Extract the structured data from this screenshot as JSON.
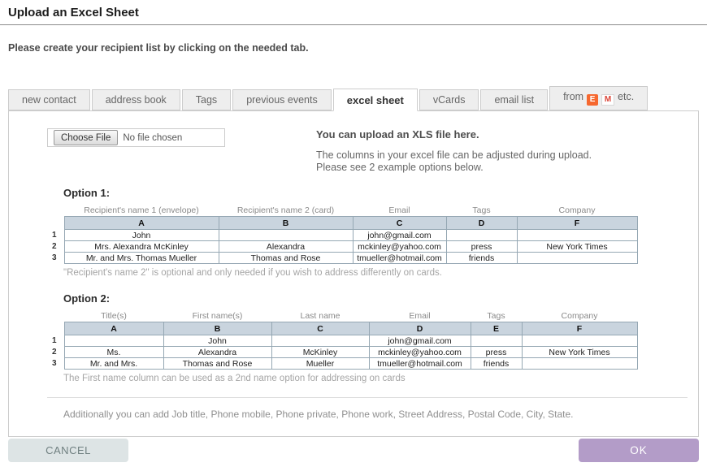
{
  "page": {
    "title": "Upload an Excel Sheet",
    "subtitle": "Please create your recipient list by clicking on the needed tab."
  },
  "tabs": {
    "items": [
      {
        "label": "new contact",
        "active": false
      },
      {
        "label": "address book",
        "active": false
      },
      {
        "label": "Tags",
        "active": false
      },
      {
        "label": "previous events",
        "active": false
      },
      {
        "label": "excel sheet",
        "active": true
      },
      {
        "label": "vCards",
        "active": false
      },
      {
        "label": "email list",
        "active": false
      },
      {
        "label": "from",
        "suffix": "etc.",
        "icon1": "E",
        "icon2": "M",
        "active": false
      }
    ]
  },
  "upload": {
    "choose_file_label": "Choose File",
    "no_file_text": "No file chosen",
    "heading": "You can upload an XLS file here.",
    "description_line1": "The columns in your excel file can be adjusted during upload.",
    "description_line2": "Please see 2 example options below."
  },
  "option1": {
    "title": "Option 1:",
    "field_labels": [
      "Recipient's name 1 (envelope)",
      "Recipient's name 2 (card)",
      "Email",
      "Tags",
      "Company"
    ],
    "columns": [
      "A",
      "B",
      "C",
      "D",
      "F"
    ],
    "row_numbers": [
      "1",
      "2",
      "3"
    ],
    "rows": [
      [
        "John",
        "",
        "john@gmail.com",
        "",
        ""
      ],
      [
        "Mrs. Alexandra McKinley",
        "Alexandra",
        "mckinley@yahoo.com",
        "press",
        "New York Times"
      ],
      [
        "Mr. and Mrs. Thomas Mueller",
        "Thomas and Rose",
        "tmueller@hotmail.com",
        "friends",
        ""
      ]
    ],
    "note": "\"Recipient's name 2\" is optional and only needed if you wish to address differently on cards."
  },
  "option2": {
    "title": "Option 2:",
    "field_labels": [
      "Title(s)",
      "First name(s)",
      "Last name",
      "Email",
      "Tags",
      "Company"
    ],
    "columns": [
      "A",
      "B",
      "C",
      "D",
      "E",
      "F"
    ],
    "row_numbers": [
      "1",
      "2",
      "3"
    ],
    "rows": [
      [
        "",
        "John",
        "",
        "john@gmail.com",
        "",
        ""
      ],
      [
        "Ms.",
        "Alexandra",
        "McKinley",
        "mckinley@yahoo.com",
        "press",
        "New York Times"
      ],
      [
        "Mr. and Mrs.",
        "Thomas and Rose",
        "Mueller",
        "tmueller@hotmail.com",
        "friends",
        ""
      ]
    ],
    "note": "The First name column can be used as a 2nd name option for addressing on cards"
  },
  "footer_note": "Additionally you can add Job title, Phone mobile, Phone private, Phone work, Street Address, Postal Code, City, State.",
  "buttons": {
    "cancel": "CANCEL",
    "ok": "OK"
  },
  "colors": {
    "table_header_bg": "#c9d4de",
    "table_border": "#95a7b3",
    "ok_button_bg": "#b39cc8",
    "cancel_button_bg": "#dde4e5",
    "eventbrite_icon_bg": "#f6682f",
    "gmail_icon_red": "#db4437",
    "tab_bg": "#eeeeee"
  }
}
